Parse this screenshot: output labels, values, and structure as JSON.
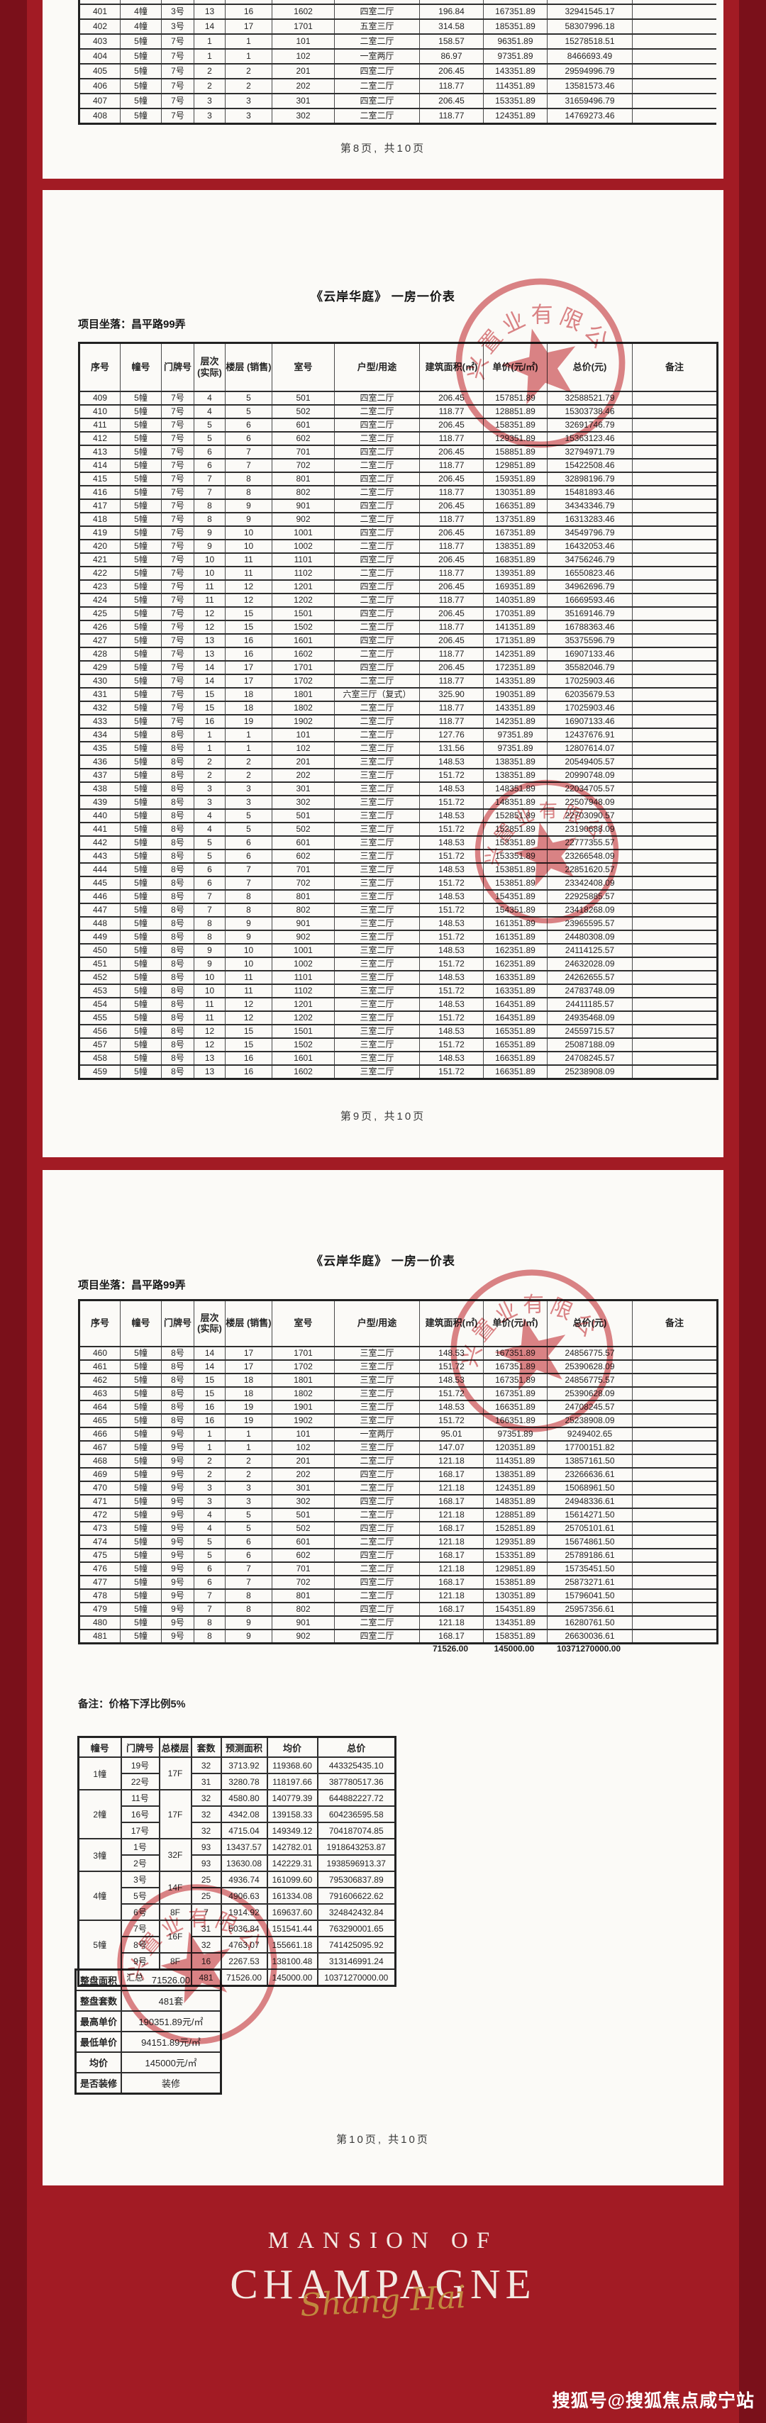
{
  "seal_text": "兴置业有限公司",
  "watermark": "搜狐号@搜狐焦点咸宁站",
  "branding": {
    "line1": "MANSION OF",
    "line2": "CHAMPAGNE",
    "script": "Shang Hai"
  },
  "columns": [
    "序号",
    "幢号",
    "门牌号",
    "层次\n(实际)",
    "楼层 (销售)",
    "室号",
    "户型/用途",
    "建筑面积(㎡)",
    "单价(元/㎡)",
    "总价(元)",
    "备注"
  ],
  "page8": {
    "footer": "第8页, 共10页",
    "rows": [
      [],
      [
        "401",
        "4幢",
        "3号",
        "13",
        "16",
        "1602",
        "四室二厅",
        "196.84",
        "167351.89",
        "32941545.17"
      ],
      [
        "402",
        "4幢",
        "3号",
        "14",
        "17",
        "1701",
        "五室三厅",
        "314.58",
        "185351.89",
        "58307996.18"
      ],
      [
        "403",
        "5幢",
        "7号",
        "1",
        "1",
        "101",
        "二室二厅",
        "158.57",
        "96351.89",
        "15278518.51"
      ],
      [
        "404",
        "5幢",
        "7号",
        "1",
        "1",
        "102",
        "一室两厅",
        "86.97",
        "97351.89",
        "8466693.49"
      ],
      [
        "405",
        "5幢",
        "7号",
        "2",
        "2",
        "201",
        "四室二厅",
        "206.45",
        "143351.89",
        "29594996.79"
      ],
      [
        "406",
        "5幢",
        "7号",
        "2",
        "2",
        "202",
        "二室二厅",
        "118.77",
        "114351.89",
        "13581573.46"
      ],
      [
        "407",
        "5幢",
        "7号",
        "3",
        "3",
        "301",
        "四室二厅",
        "206.45",
        "153351.89",
        "31659496.79"
      ],
      [
        "408",
        "5幢",
        "7号",
        "3",
        "3",
        "302",
        "二室二厅",
        "118.77",
        "124351.89",
        "14769273.46"
      ]
    ]
  },
  "page9": {
    "title": "《云岸华庭》  一房一价表",
    "location_label": "项目坐落：昌平路99弄",
    "footer": "第9页, 共10页",
    "rows": [
      [
        "409",
        "5幢",
        "7号",
        "4",
        "5",
        "501",
        "四室二厅",
        "206.45",
        "157851.89",
        "32588521.79"
      ],
      [
        "410",
        "5幢",
        "7号",
        "4",
        "5",
        "502",
        "二室二厅",
        "118.77",
        "128851.89",
        "15303738.46"
      ],
      [
        "411",
        "5幢",
        "7号",
        "5",
        "6",
        "601",
        "四室二厅",
        "206.45",
        "158351.89",
        "32691746.79"
      ],
      [
        "412",
        "5幢",
        "7号",
        "5",
        "6",
        "602",
        "二室二厅",
        "118.77",
        "129351.89",
        "15363123.46"
      ],
      [
        "413",
        "5幢",
        "7号",
        "6",
        "7",
        "701",
        "四室二厅",
        "206.45",
        "158851.89",
        "32794971.79"
      ],
      [
        "414",
        "5幢",
        "7号",
        "6",
        "7",
        "702",
        "二室二厅",
        "118.77",
        "129851.89",
        "15422508.46"
      ],
      [
        "415",
        "5幢",
        "7号",
        "7",
        "8",
        "801",
        "四室二厅",
        "206.45",
        "159351.89",
        "32898196.79"
      ],
      [
        "416",
        "5幢",
        "7号",
        "7",
        "8",
        "802",
        "二室二厅",
        "118.77",
        "130351.89",
        "15481893.46"
      ],
      [
        "417",
        "5幢",
        "7号",
        "8",
        "9",
        "901",
        "四室二厅",
        "206.45",
        "166351.89",
        "34343346.79"
      ],
      [
        "418",
        "5幢",
        "7号",
        "8",
        "9",
        "902",
        "二室二厅",
        "118.77",
        "137351.89",
        "16313283.46"
      ],
      [
        "419",
        "5幢",
        "7号",
        "9",
        "10",
        "1001",
        "四室二厅",
        "206.45",
        "167351.89",
        "34549796.79"
      ],
      [
        "420",
        "5幢",
        "7号",
        "9",
        "10",
        "1002",
        "二室二厅",
        "118.77",
        "138351.89",
        "16432053.46"
      ],
      [
        "421",
        "5幢",
        "7号",
        "10",
        "11",
        "1101",
        "四室二厅",
        "206.45",
        "168351.89",
        "34756246.79"
      ],
      [
        "422",
        "5幢",
        "7号",
        "10",
        "11",
        "1102",
        "二室二厅",
        "118.77",
        "139351.89",
        "16550823.46"
      ],
      [
        "423",
        "5幢",
        "7号",
        "11",
        "12",
        "1201",
        "四室二厅",
        "206.45",
        "169351.89",
        "34962696.79"
      ],
      [
        "424",
        "5幢",
        "7号",
        "11",
        "12",
        "1202",
        "二室二厅",
        "118.77",
        "140351.89",
        "16669593.46"
      ],
      [
        "425",
        "5幢",
        "7号",
        "12",
        "15",
        "1501",
        "四室二厅",
        "206.45",
        "170351.89",
        "35169146.79"
      ],
      [
        "426",
        "5幢",
        "7号",
        "12",
        "15",
        "1502",
        "二室二厅",
        "118.77",
        "141351.89",
        "16788363.46"
      ],
      [
        "427",
        "5幢",
        "7号",
        "13",
        "16",
        "1601",
        "四室二厅",
        "206.45",
        "171351.89",
        "35375596.79"
      ],
      [
        "428",
        "5幢",
        "7号",
        "13",
        "16",
        "1602",
        "二室二厅",
        "118.77",
        "142351.89",
        "16907133.46"
      ],
      [
        "429",
        "5幢",
        "7号",
        "14",
        "17",
        "1701",
        "四室二厅",
        "206.45",
        "172351.89",
        "35582046.79"
      ],
      [
        "430",
        "5幢",
        "7号",
        "14",
        "17",
        "1702",
        "二室二厅",
        "118.77",
        "143351.89",
        "17025903.46"
      ],
      [
        "431",
        "5幢",
        "7号",
        "15",
        "18",
        "1801",
        "六室三厅（复式）",
        "325.90",
        "190351.89",
        "62035679.53"
      ],
      [
        "432",
        "5幢",
        "7号",
        "15",
        "18",
        "1802",
        "二室二厅",
        "118.77",
        "143351.89",
        "17025903.46"
      ],
      [
        "433",
        "5幢",
        "7号",
        "16",
        "19",
        "1902",
        "二室二厅",
        "118.77",
        "142351.89",
        "16907133.46"
      ],
      [
        "434",
        "5幢",
        "8号",
        "1",
        "1",
        "101",
        "二室二厅",
        "127.76",
        "97351.89",
        "12437676.91"
      ],
      [
        "435",
        "5幢",
        "8号",
        "1",
        "1",
        "102",
        "二室二厅",
        "131.56",
        "97351.89",
        "12807614.07"
      ],
      [
        "436",
        "5幢",
        "8号",
        "2",
        "2",
        "201",
        "三室二厅",
        "148.53",
        "138351.89",
        "20549405.57"
      ],
      [
        "437",
        "5幢",
        "8号",
        "2",
        "2",
        "202",
        "三室二厅",
        "151.72",
        "138351.89",
        "20990748.09"
      ],
      [
        "438",
        "5幢",
        "8号",
        "3",
        "3",
        "301",
        "三室二厅",
        "148.53",
        "148351.89",
        "22034705.57"
      ],
      [
        "439",
        "5幢",
        "8号",
        "3",
        "3",
        "302",
        "三室二厅",
        "151.72",
        "148351.89",
        "22507948.09"
      ],
      [
        "440",
        "5幢",
        "8号",
        "4",
        "5",
        "501",
        "三室二厅",
        "148.53",
        "152851.89",
        "22703090.57"
      ],
      [
        "441",
        "5幢",
        "8号",
        "4",
        "5",
        "502",
        "三室二厅",
        "151.72",
        "152851.89",
        "23190688.09"
      ],
      [
        "442",
        "5幢",
        "8号",
        "5",
        "6",
        "601",
        "三室二厅",
        "148.53",
        "153351.89",
        "22777355.57"
      ],
      [
        "443",
        "5幢",
        "8号",
        "5",
        "6",
        "602",
        "三室二厅",
        "151.72",
        "153351.89",
        "23266548.09"
      ],
      [
        "444",
        "5幢",
        "8号",
        "6",
        "7",
        "701",
        "三室二厅",
        "148.53",
        "153851.89",
        "22851620.57"
      ],
      [
        "445",
        "5幢",
        "8号",
        "6",
        "7",
        "702",
        "三室二厅",
        "151.72",
        "153851.89",
        "23342408.09"
      ],
      [
        "446",
        "5幢",
        "8号",
        "7",
        "8",
        "801",
        "三室二厅",
        "148.53",
        "154351.89",
        "22925885.57"
      ],
      [
        "447",
        "5幢",
        "8号",
        "7",
        "8",
        "802",
        "三室二厅",
        "151.72",
        "154351.89",
        "23418268.09"
      ],
      [
        "448",
        "5幢",
        "8号",
        "8",
        "9",
        "901",
        "三室二厅",
        "148.53",
        "161351.89",
        "23965595.57"
      ],
      [
        "449",
        "5幢",
        "8号",
        "8",
        "9",
        "902",
        "三室二厅",
        "151.72",
        "161351.89",
        "24480308.09"
      ],
      [
        "450",
        "5幢",
        "8号",
        "9",
        "10",
        "1001",
        "三室二厅",
        "148.53",
        "162351.89",
        "24114125.57"
      ],
      [
        "451",
        "5幢",
        "8号",
        "9",
        "10",
        "1002",
        "三室二厅",
        "151.72",
        "162351.89",
        "24632028.09"
      ],
      [
        "452",
        "5幢",
        "8号",
        "10",
        "11",
        "1101",
        "三室二厅",
        "148.53",
        "163351.89",
        "24262655.57"
      ],
      [
        "453",
        "5幢",
        "8号",
        "10",
        "11",
        "1102",
        "三室二厅",
        "151.72",
        "163351.89",
        "24783748.09"
      ],
      [
        "454",
        "5幢",
        "8号",
        "11",
        "12",
        "1201",
        "三室二厅",
        "148.53",
        "164351.89",
        "24411185.57"
      ],
      [
        "455",
        "5幢",
        "8号",
        "11",
        "12",
        "1202",
        "三室二厅",
        "151.72",
        "164351.89",
        "24935468.09"
      ],
      [
        "456",
        "5幢",
        "8号",
        "12",
        "15",
        "1501",
        "三室二厅",
        "148.53",
        "165351.89",
        "24559715.57"
      ],
      [
        "457",
        "5幢",
        "8号",
        "12",
        "15",
        "1502",
        "三室二厅",
        "151.72",
        "165351.89",
        "25087188.09"
      ],
      [
        "458",
        "5幢",
        "8号",
        "13",
        "16",
        "1601",
        "三室二厅",
        "148.53",
        "166351.89",
        "24708245.57"
      ],
      [
        "459",
        "5幢",
        "8号",
        "13",
        "16",
        "1602",
        "三室二厅",
        "151.72",
        "166351.89",
        "25238908.09"
      ]
    ]
  },
  "page10": {
    "title": "《云岸华庭》  一房一价表",
    "location_label": "项目坐落：昌平路99弄",
    "footer": "第10页, 共10页",
    "note": "备注：价格下浮比例5%",
    "rows": [
      [
        "460",
        "5幢",
        "8号",
        "14",
        "17",
        "1701",
        "三室二厅",
        "148.53",
        "167351.89",
        "24856775.57"
      ],
      [
        "461",
        "5幢",
        "8号",
        "14",
        "17",
        "1702",
        "三室二厅",
        "151.72",
        "167351.89",
        "25390628.09"
      ],
      [
        "462",
        "5幢",
        "8号",
        "15",
        "18",
        "1801",
        "三室二厅",
        "148.53",
        "167351.89",
        "24856775.57"
      ],
      [
        "463",
        "5幢",
        "8号",
        "15",
        "18",
        "1802",
        "三室二厅",
        "151.72",
        "167351.89",
        "25390628.09"
      ],
      [
        "464",
        "5幢",
        "8号",
        "16",
        "19",
        "1901",
        "三室二厅",
        "148.53",
        "166351.89",
        "24708245.57"
      ],
      [
        "465",
        "5幢",
        "8号",
        "16",
        "19",
        "1902",
        "三室二厅",
        "151.72",
        "166351.89",
        "25238908.09"
      ],
      [
        "466",
        "5幢",
        "9号",
        "1",
        "1",
        "101",
        "一室两厅",
        "95.01",
        "97351.89",
        "9249402.65"
      ],
      [
        "467",
        "5幢",
        "9号",
        "1",
        "1",
        "102",
        "三室二厅",
        "147.07",
        "120351.89",
        "17700151.82"
      ],
      [
        "468",
        "5幢",
        "9号",
        "2",
        "2",
        "201",
        "二室二厅",
        "121.18",
        "114351.89",
        "13857161.50"
      ],
      [
        "469",
        "5幢",
        "9号",
        "2",
        "2",
        "202",
        "四室二厅",
        "168.17",
        "138351.89",
        "23266636.61"
      ],
      [
        "470",
        "5幢",
        "9号",
        "3",
        "3",
        "301",
        "二室二厅",
        "121.18",
        "124351.89",
        "15068961.50"
      ],
      [
        "471",
        "5幢",
        "9号",
        "3",
        "3",
        "302",
        "四室二厅",
        "168.17",
        "148351.89",
        "24948336.61"
      ],
      [
        "472",
        "5幢",
        "9号",
        "4",
        "5",
        "501",
        "二室二厅",
        "121.18",
        "128851.89",
        "15614271.50"
      ],
      [
        "473",
        "5幢",
        "9号",
        "4",
        "5",
        "502",
        "四室二厅",
        "168.17",
        "152851.89",
        "25705101.61"
      ],
      [
        "474",
        "5幢",
        "9号",
        "5",
        "6",
        "601",
        "二室二厅",
        "121.18",
        "129351.89",
        "15674861.50"
      ],
      [
        "475",
        "5幢",
        "9号",
        "5",
        "6",
        "602",
        "四室二厅",
        "168.17",
        "153351.89",
        "25789186.61"
      ],
      [
        "476",
        "5幢",
        "9号",
        "6",
        "7",
        "701",
        "二室二厅",
        "121.18",
        "129851.89",
        "15735451.50"
      ],
      [
        "477",
        "5幢",
        "9号",
        "6",
        "7",
        "702",
        "四室二厅",
        "168.17",
        "153851.89",
        "25873271.61"
      ],
      [
        "478",
        "5幢",
        "9号",
        "7",
        "8",
        "801",
        "二室二厅",
        "121.18",
        "130351.89",
        "15796041.50"
      ],
      [
        "479",
        "5幢",
        "9号",
        "7",
        "8",
        "802",
        "四室二厅",
        "168.17",
        "154351.89",
        "25957356.61"
      ],
      [
        "480",
        "5幢",
        "9号",
        "8",
        "9",
        "901",
        "二室二厅",
        "121.18",
        "134351.89",
        "16280761.50"
      ],
      [
        "481",
        "5幢",
        "9号",
        "8",
        "9",
        "902",
        "四室二厅",
        "168.17",
        "158351.89",
        "26630036.61"
      ]
    ],
    "totals": {
      "area": "71526.00",
      "unit": "145000.00",
      "total": "10371270000.00"
    },
    "summary": {
      "columns": [
        "幢号",
        "门牌号",
        "总楼层",
        "套数",
        "预测面积",
        "均价",
        "总价"
      ],
      "rows": [
        [
          {
            "t": "1幢",
            "rs": 2
          },
          "19号",
          {
            "t": "17F",
            "rs": 2
          },
          "32",
          "3713.92",
          "119368.60",
          "443325435.10"
        ],
        [
          "22号",
          "31",
          "3280.78",
          "118197.66",
          "387780517.36"
        ],
        [
          {
            "t": "2幢",
            "rs": 3
          },
          "11号",
          {
            "t": "17F",
            "rs": 3
          },
          "32",
          "4580.80",
          "140779.39",
          "644882227.72"
        ],
        [
          "16号",
          "32",
          "4342.08",
          "139158.33",
          "604236595.58"
        ],
        [
          "17号",
          "32",
          "4715.04",
          "149349.12",
          "704187074.85"
        ],
        [
          {
            "t": "3幢",
            "rs": 2
          },
          "1号",
          {
            "t": "32F",
            "rs": 2
          },
          "93",
          "13437.57",
          "142782.01",
          "1918643253.87"
        ],
        [
          "2号",
          "93",
          "13630.08",
          "142229.31",
          "1938596913.37"
        ],
        [
          {
            "t": "4幢",
            "rs": 3
          },
          "3号",
          {
            "t": "14F",
            "rs": 2
          },
          "25",
          "4936.74",
          "161099.60",
          "795306837.89"
        ],
        [
          "5号",
          "25",
          "4906.63",
          "161334.08",
          "791606622.62"
        ],
        [
          "6号",
          "8F",
          "7",
          "1914.92",
          "169637.60",
          "324842432.84"
        ],
        [
          {
            "t": "5幢",
            "rs": 3
          },
          "7号",
          {
            "t": "16F",
            "rs": 2
          },
          "31",
          "5036.84",
          "151541.44",
          "763290001.65"
        ],
        [
          "8号",
          "32",
          "4763.07",
          "155661.18",
          "741425095.92"
        ],
        [
          "9号",
          "8F",
          "16",
          "2267.53",
          "138100.48",
          "313146991.24"
        ],
        [
          {
            "t": "汇总",
            "cs": 3
          },
          "481",
          "71526.00",
          "145000.00",
          "10371270000.00"
        ]
      ]
    },
    "stats": {
      "rows": [
        [
          "整盘面积",
          "71526.00"
        ],
        [
          "整盘套数",
          "481套"
        ],
        [
          "最高单价",
          "190351.89元/㎡"
        ],
        [
          "最低单价",
          "94151.89元/㎡"
        ],
        [
          "均价",
          "145000元/㎡"
        ],
        [
          "是否装修",
          "装修"
        ]
      ]
    }
  }
}
